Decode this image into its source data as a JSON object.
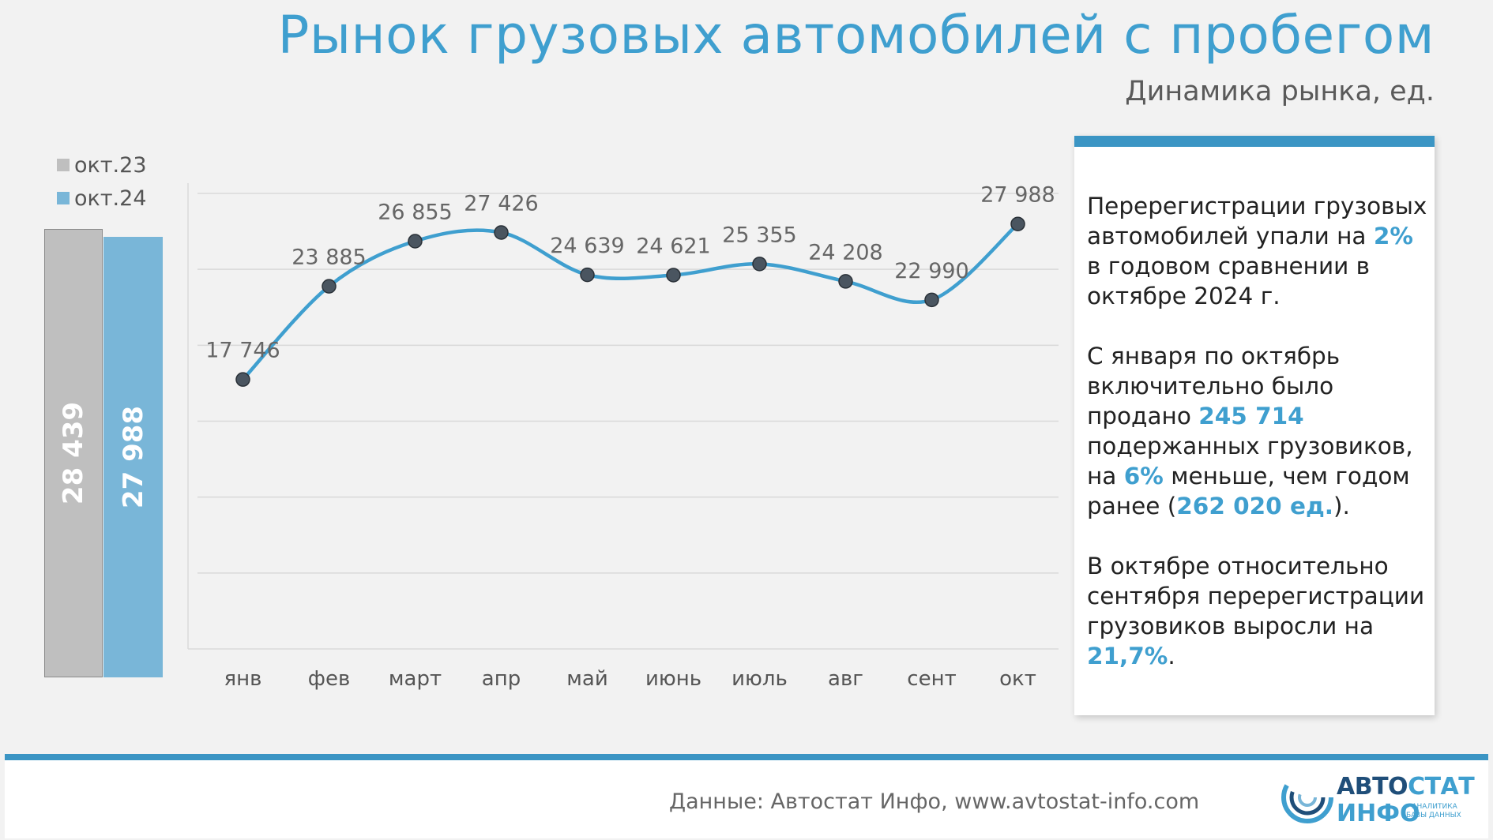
{
  "title": "Рынок грузовых автомобилей с пробегом",
  "subtitle": "Динамика рынка, ед.",
  "legend": {
    "oct23": "окт.23",
    "oct24": "окт.24"
  },
  "comparison_bars": {
    "oct23_label": "28 439",
    "oct24_label": "27 988"
  },
  "chart_data": [
    {
      "type": "bar",
      "categories": [
        "окт.23",
        "окт.24"
      ],
      "values": [
        28439,
        27988
      ],
      "colors": [
        "#bfbfbf",
        "#79b6d8"
      ]
    },
    {
      "type": "line",
      "categories": [
        "янв",
        "фев",
        "март",
        "апр",
        "май",
        "июнь",
        "июль",
        "авг",
        "сент",
        "окт"
      ],
      "values": [
        17746,
        23885,
        26855,
        27426,
        24639,
        24621,
        25355,
        24208,
        22990,
        27988
      ],
      "labels": [
        "17 746",
        "23 885",
        "26 855",
        "27 426",
        "24 639",
        "24 621",
        "25 355",
        "24 208",
        "22 990",
        "27 988"
      ],
      "ylim": [
        0,
        30000
      ],
      "grid": true,
      "line_color": "#3f9fcf",
      "marker_color": "#4a5560"
    }
  ],
  "info": {
    "p1_a": "Перерегистрации грузовых автомобилей упали на ",
    "p1_hl": "2%",
    "p1_b": " в годовом сравнении в октябре 2024 г.",
    "p2_a": "С января по октябрь включительно было продано ",
    "p2_hl1": "245 714",
    "p2_b": " подержанных грузовиков, на ",
    "p2_hl2": "6%",
    "p2_c": " меньше, чем годом ранее (",
    "p2_hl3": "262 020 ед.",
    "p2_d": ").",
    "p3_a": "В октябре относительно сентября перерегистрации грузовиков выросли на ",
    "p3_hl": "21,7%",
    "p3_b": "."
  },
  "footer": {
    "source": "Данные: Автостат Инфо, www.avtostat-info.com",
    "logo_avto": "АВТО",
    "logo_stat": "СТАТ",
    "logo_info": "ИНФО",
    "logo_sub1": "▸ АНАЛИТИКА",
    "logo_sub2": "БАЗЫ ДАННЫХ"
  },
  "colors": {
    "accent": "#3f9fcf",
    "dark_blue": "#1f4e79",
    "grey_bar": "#bfbfbf",
    "blue_bar": "#79b6d8"
  }
}
